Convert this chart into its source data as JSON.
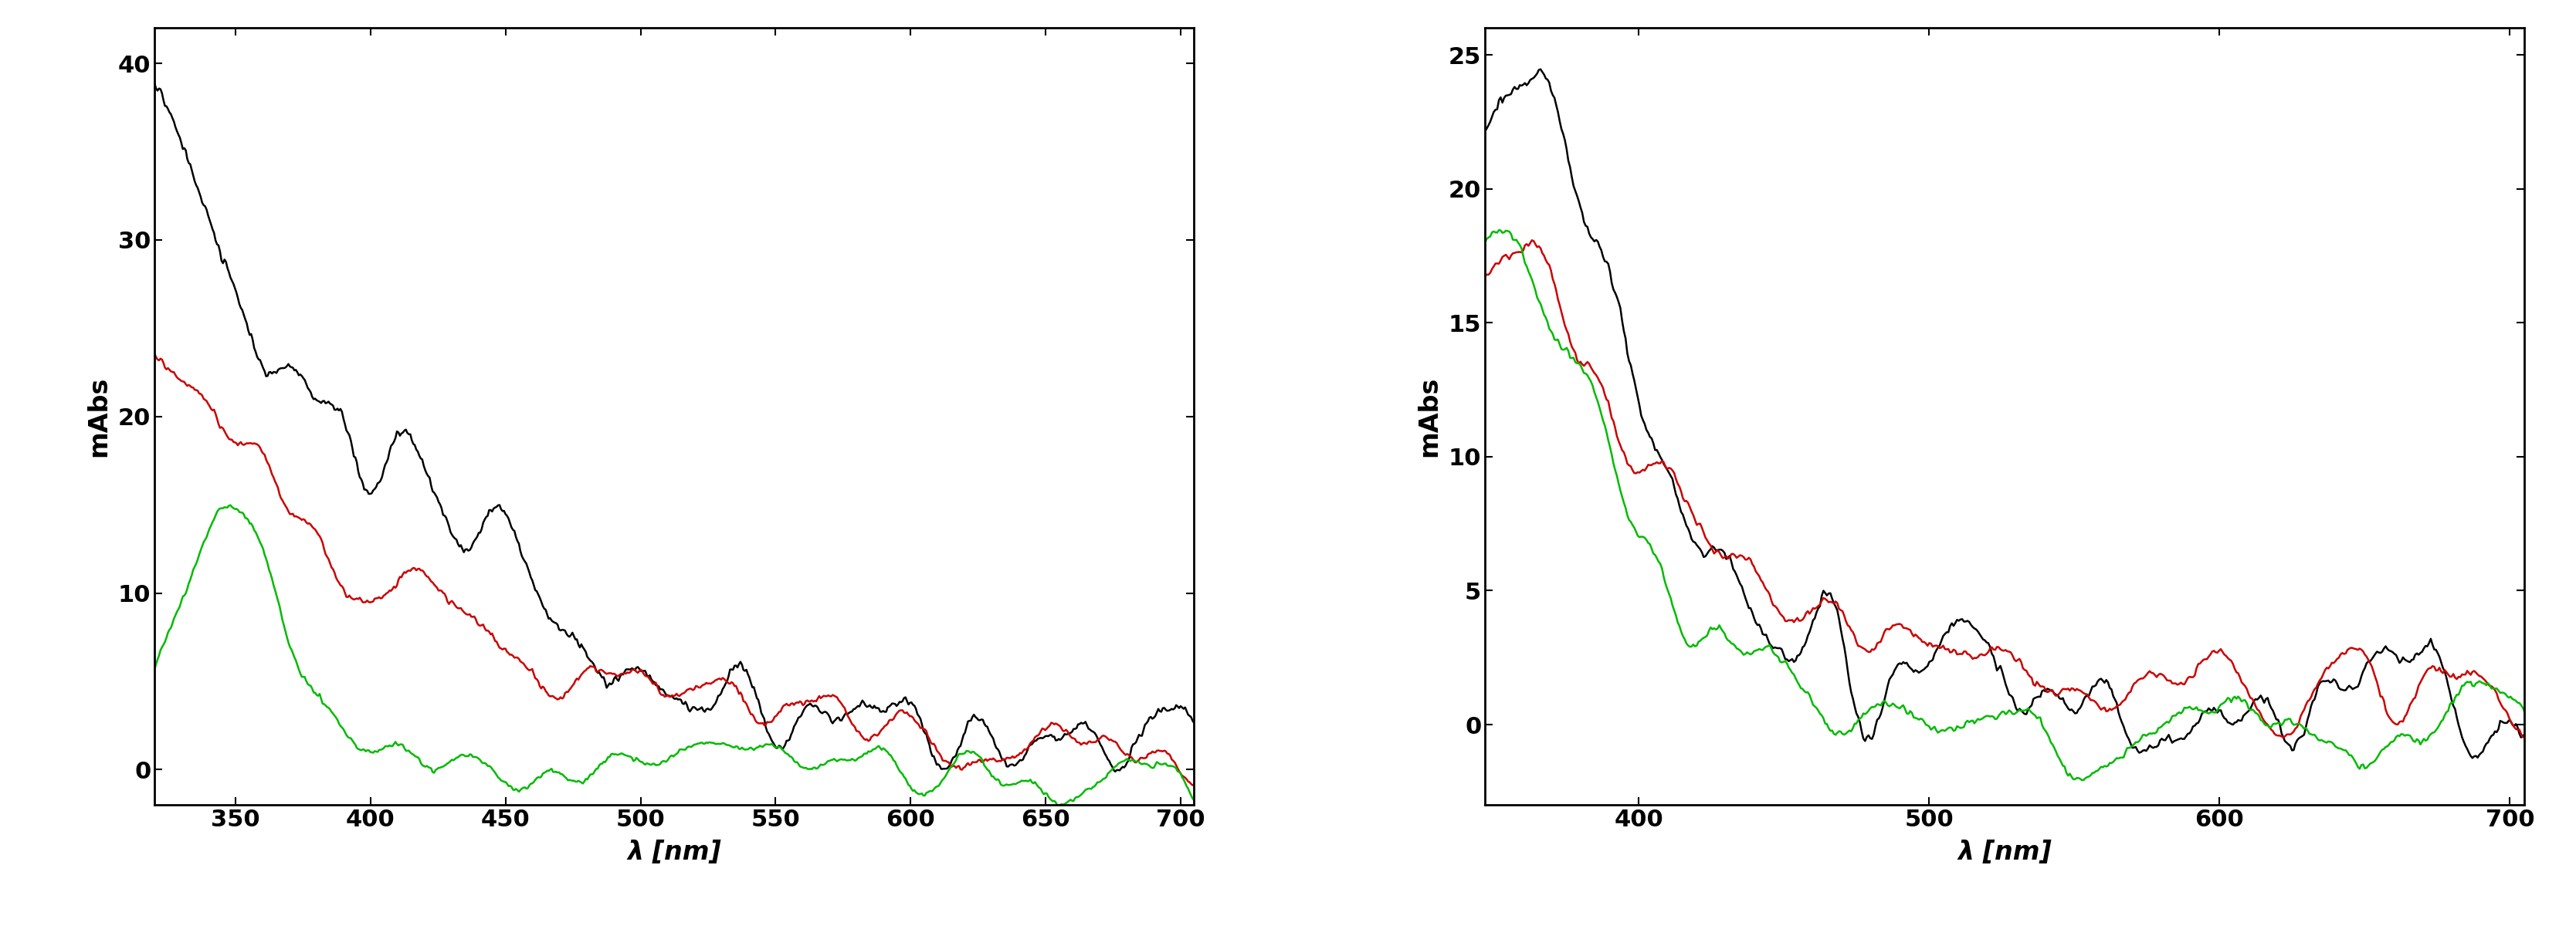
{
  "plot1": {
    "xlim": [
      320,
      705
    ],
    "ylim": [
      -2,
      42
    ],
    "xticks": [
      350,
      400,
      450,
      500,
      550,
      600,
      650,
      700
    ],
    "yticks": [
      0,
      10,
      20,
      30,
      40
    ],
    "xlabel": "λ [nm]",
    "ylabel": "mAbs"
  },
  "plot2": {
    "xlim": [
      347,
      705
    ],
    "ylim": [
      -3,
      26
    ],
    "xticks": [
      400,
      500,
      600,
      700
    ],
    "yticks": [
      0,
      5,
      10,
      15,
      20,
      25
    ],
    "xlabel": "λ [nm]",
    "ylabel": "mAbs"
  },
  "colors": {
    "black": "#000000",
    "red": "#cc0000",
    "green": "#00bb00"
  },
  "linewidth": 1.8,
  "tick_fontsize": 22,
  "label_fontsize": 24,
  "background": "#ffffff"
}
